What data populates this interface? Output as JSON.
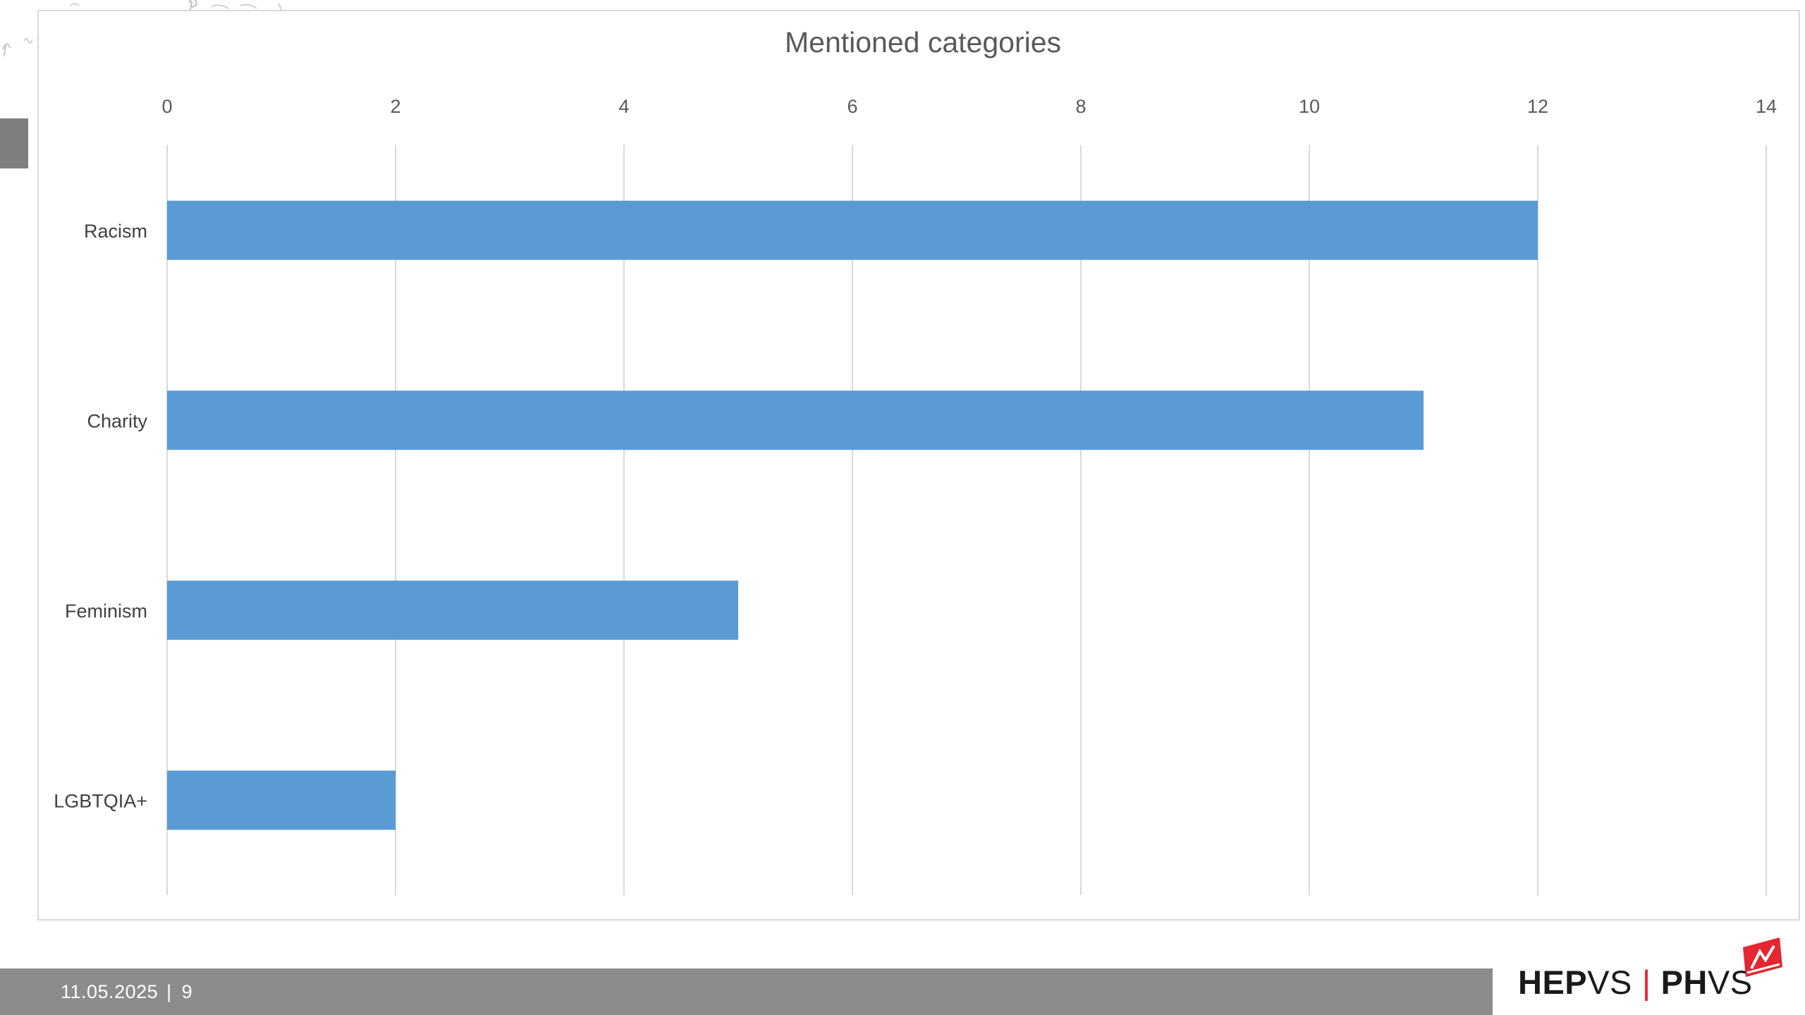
{
  "slide": {
    "footer": {
      "date": "11.05.2025",
      "separator": "|",
      "page_number": "9"
    },
    "logo": {
      "part1_bold": "HEP",
      "part1_light": "VS",
      "divider": "|",
      "part2_bold": "PH",
      "part2_light": "VS"
    },
    "colors": {
      "bar": "#5b9bd5",
      "footer_bar": "#8c8c8c",
      "logo_accent": "#e3262f",
      "gridline": "#d9d9d9"
    }
  },
  "chart_data": {
    "type": "bar",
    "orientation": "horizontal",
    "title": "Mentioned categories",
    "categories": [
      "Racism",
      "Charity",
      "Feminism",
      "LGBTQIA+"
    ],
    "values": [
      12,
      11,
      5,
      2
    ],
    "xlim": [
      0,
      14
    ],
    "x_ticks": [
      0,
      2,
      4,
      6,
      8,
      10,
      12,
      14
    ],
    "x_axis_position": "top",
    "grid": true,
    "legend": "none"
  }
}
